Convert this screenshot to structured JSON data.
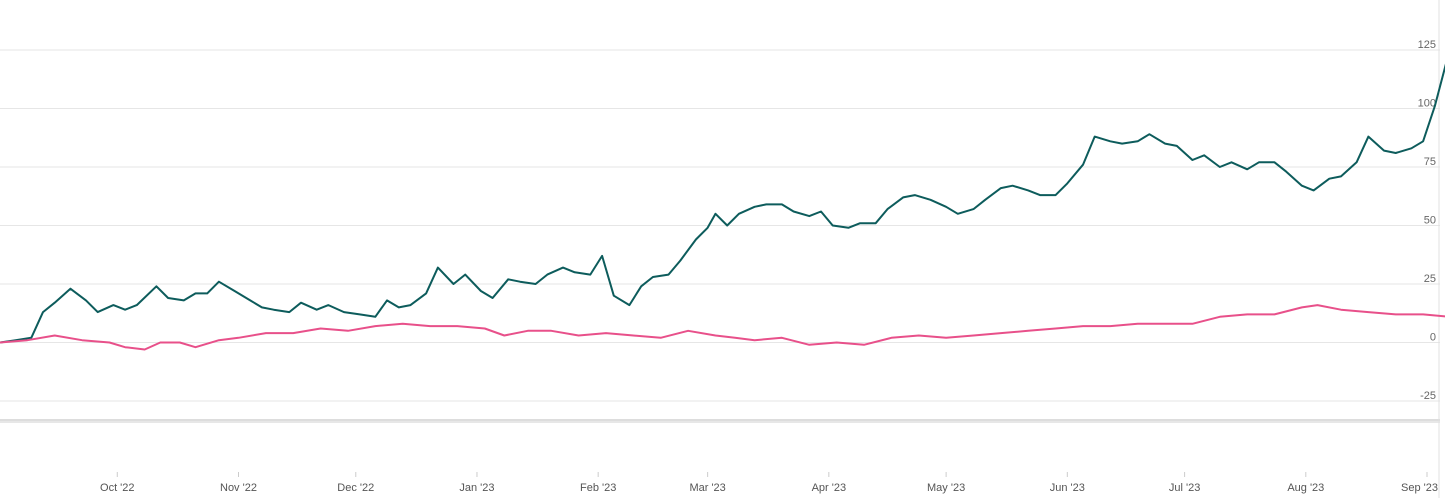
{
  "chart_data": {
    "type": "line",
    "title": "",
    "xlabel": "",
    "ylabel": "",
    "ylim": [
      -25,
      125
    ],
    "yticks": [
      125,
      100,
      75,
      50,
      25,
      0,
      -25
    ],
    "grid": true,
    "legend": "none",
    "x_range": [
      "2022-09-01",
      "2023-09-01"
    ],
    "x_ticks": [
      {
        "date": "2022-10-01",
        "label": "Oct '22"
      },
      {
        "date": "2022-11-01",
        "label": "Nov '22"
      },
      {
        "date": "2022-12-01",
        "label": "Dec '22"
      },
      {
        "date": "2023-01-01",
        "label": "Jan '23"
      },
      {
        "date": "2023-02-01",
        "label": "Feb '23"
      },
      {
        "date": "2023-03-01",
        "label": "Mar '23"
      },
      {
        "date": "2023-04-01",
        "label": "Apr '23"
      },
      {
        "date": "2023-05-01",
        "label": "May '23"
      },
      {
        "date": "2023-06-01",
        "label": "Jun '23"
      },
      {
        "date": "2023-07-01",
        "label": "Jul '23"
      },
      {
        "date": "2023-08-01",
        "label": "Aug '23"
      },
      {
        "date": "2023-09-01",
        "label": "Sep '23"
      }
    ],
    "series": [
      {
        "color": "#0d5c5c",
        "points": [
          [
            "2022-09-01",
            0
          ],
          [
            "2022-09-05",
            1
          ],
          [
            "2022-09-09",
            2
          ],
          [
            "2022-09-12",
            13
          ],
          [
            "2022-09-15",
            17
          ],
          [
            "2022-09-19",
            23
          ],
          [
            "2022-09-23",
            18
          ],
          [
            "2022-09-26",
            13
          ],
          [
            "2022-09-30",
            16
          ],
          [
            "2022-10-03",
            14
          ],
          [
            "2022-10-06",
            16
          ],
          [
            "2022-10-11",
            24
          ],
          [
            "2022-10-14",
            19
          ],
          [
            "2022-10-18",
            18
          ],
          [
            "2022-10-21",
            21
          ],
          [
            "2022-10-24",
            21
          ],
          [
            "2022-10-27",
            26
          ],
          [
            "2022-10-31",
            22
          ],
          [
            "2022-11-04",
            18
          ],
          [
            "2022-11-07",
            15
          ],
          [
            "2022-11-10",
            14
          ],
          [
            "2022-11-14",
            13
          ],
          [
            "2022-11-17",
            17
          ],
          [
            "2022-11-21",
            14
          ],
          [
            "2022-11-24",
            16
          ],
          [
            "2022-11-28",
            13
          ],
          [
            "2022-12-02",
            12
          ],
          [
            "2022-12-06",
            11
          ],
          [
            "2022-12-09",
            18
          ],
          [
            "2022-12-12",
            15
          ],
          [
            "2022-12-15",
            16
          ],
          [
            "2022-12-19",
            21
          ],
          [
            "2022-12-22",
            32
          ],
          [
            "2022-12-26",
            25
          ],
          [
            "2022-12-29",
            29
          ],
          [
            "2023-01-02",
            22
          ],
          [
            "2023-01-05",
            19
          ],
          [
            "2023-01-09",
            27
          ],
          [
            "2023-01-12",
            26
          ],
          [
            "2023-01-16",
            25
          ],
          [
            "2023-01-19",
            29
          ],
          [
            "2023-01-23",
            32
          ],
          [
            "2023-01-26",
            30
          ],
          [
            "2023-01-30",
            29
          ],
          [
            "2023-02-02",
            37
          ],
          [
            "2023-02-05",
            20
          ],
          [
            "2023-02-09",
            16
          ],
          [
            "2023-02-12",
            24
          ],
          [
            "2023-02-15",
            28
          ],
          [
            "2023-02-19",
            29
          ],
          [
            "2023-02-22",
            35
          ],
          [
            "2023-02-26",
            44
          ],
          [
            "2023-03-01",
            49
          ],
          [
            "2023-03-03",
            55
          ],
          [
            "2023-03-06",
            50
          ],
          [
            "2023-03-09",
            55
          ],
          [
            "2023-03-13",
            58
          ],
          [
            "2023-03-16",
            59
          ],
          [
            "2023-03-20",
            59
          ],
          [
            "2023-03-23",
            56
          ],
          [
            "2023-03-27",
            54
          ],
          [
            "2023-03-30",
            56
          ],
          [
            "2023-04-02",
            50
          ],
          [
            "2023-04-06",
            49
          ],
          [
            "2023-04-09",
            51
          ],
          [
            "2023-04-13",
            51
          ],
          [
            "2023-04-16",
            57
          ],
          [
            "2023-04-20",
            62
          ],
          [
            "2023-04-23",
            63
          ],
          [
            "2023-04-27",
            61
          ],
          [
            "2023-05-01",
            58
          ],
          [
            "2023-05-04",
            55
          ],
          [
            "2023-05-08",
            57
          ],
          [
            "2023-05-11",
            61
          ],
          [
            "2023-05-15",
            66
          ],
          [
            "2023-05-18",
            67
          ],
          [
            "2023-05-22",
            65
          ],
          [
            "2023-05-25",
            63
          ],
          [
            "2023-05-29",
            63
          ],
          [
            "2023-06-01",
            68
          ],
          [
            "2023-06-05",
            76
          ],
          [
            "2023-06-08",
            88
          ],
          [
            "2023-06-12",
            86
          ],
          [
            "2023-06-15",
            85
          ],
          [
            "2023-06-19",
            86
          ],
          [
            "2023-06-22",
            89
          ],
          [
            "2023-06-26",
            85
          ],
          [
            "2023-06-29",
            84
          ],
          [
            "2023-07-03",
            78
          ],
          [
            "2023-07-06",
            80
          ],
          [
            "2023-07-10",
            75
          ],
          [
            "2023-07-13",
            77
          ],
          [
            "2023-07-17",
            74
          ],
          [
            "2023-07-20",
            77
          ],
          [
            "2023-07-24",
            77
          ],
          [
            "2023-07-27",
            73
          ],
          [
            "2023-07-31",
            67
          ],
          [
            "2023-08-03",
            65
          ],
          [
            "2023-08-07",
            70
          ],
          [
            "2023-08-10",
            71
          ],
          [
            "2023-08-14",
            77
          ],
          [
            "2023-08-17",
            88
          ],
          [
            "2023-08-21",
            82
          ],
          [
            "2023-08-24",
            81
          ],
          [
            "2023-08-28",
            83
          ],
          [
            "2023-08-31",
            86
          ],
          [
            "2023-09-03",
            101
          ],
          [
            "2023-09-06",
            120
          ],
          [
            "2023-09-09",
            107
          ],
          [
            "2023-09-12",
            116
          ]
        ]
      },
      {
        "color": "#e8508a",
        "points": [
          [
            "2022-09-01",
            0
          ],
          [
            "2022-09-08",
            1
          ],
          [
            "2022-09-15",
            3
          ],
          [
            "2022-09-22",
            1
          ],
          [
            "2022-09-29",
            0
          ],
          [
            "2022-10-03",
            -2
          ],
          [
            "2022-10-08",
            -3
          ],
          [
            "2022-10-12",
            0
          ],
          [
            "2022-10-17",
            0
          ],
          [
            "2022-10-21",
            -2
          ],
          [
            "2022-10-27",
            1
          ],
          [
            "2022-11-01",
            2
          ],
          [
            "2022-11-08",
            4
          ],
          [
            "2022-11-15",
            4
          ],
          [
            "2022-11-22",
            6
          ],
          [
            "2022-11-29",
            5
          ],
          [
            "2022-12-06",
            7
          ],
          [
            "2022-12-13",
            8
          ],
          [
            "2022-12-20",
            7
          ],
          [
            "2022-12-27",
            7
          ],
          [
            "2023-01-03",
            6
          ],
          [
            "2023-01-08",
            3
          ],
          [
            "2023-01-14",
            5
          ],
          [
            "2023-01-20",
            5
          ],
          [
            "2023-01-27",
            3
          ],
          [
            "2023-02-03",
            4
          ],
          [
            "2023-02-10",
            3
          ],
          [
            "2023-02-17",
            2
          ],
          [
            "2023-02-24",
            5
          ],
          [
            "2023-03-03",
            3
          ],
          [
            "2023-03-08",
            2
          ],
          [
            "2023-03-13",
            1
          ],
          [
            "2023-03-20",
            2
          ],
          [
            "2023-03-27",
            -1
          ],
          [
            "2023-04-03",
            0
          ],
          [
            "2023-04-10",
            -1
          ],
          [
            "2023-04-17",
            2
          ],
          [
            "2023-04-24",
            3
          ],
          [
            "2023-05-01",
            2
          ],
          [
            "2023-05-08",
            3
          ],
          [
            "2023-05-15",
            4
          ],
          [
            "2023-05-22",
            5
          ],
          [
            "2023-05-29",
            6
          ],
          [
            "2023-06-05",
            7
          ],
          [
            "2023-06-12",
            7
          ],
          [
            "2023-06-19",
            8
          ],
          [
            "2023-06-26",
            8
          ],
          [
            "2023-07-03",
            8
          ],
          [
            "2023-07-10",
            11
          ],
          [
            "2023-07-17",
            12
          ],
          [
            "2023-07-24",
            12
          ],
          [
            "2023-07-31",
            15
          ],
          [
            "2023-08-04",
            16
          ],
          [
            "2023-08-10",
            14
          ],
          [
            "2023-08-17",
            13
          ],
          [
            "2023-08-24",
            12
          ],
          [
            "2023-08-31",
            12
          ],
          [
            "2023-09-07",
            11
          ],
          [
            "2023-09-12",
            12
          ]
        ]
      }
    ]
  }
}
